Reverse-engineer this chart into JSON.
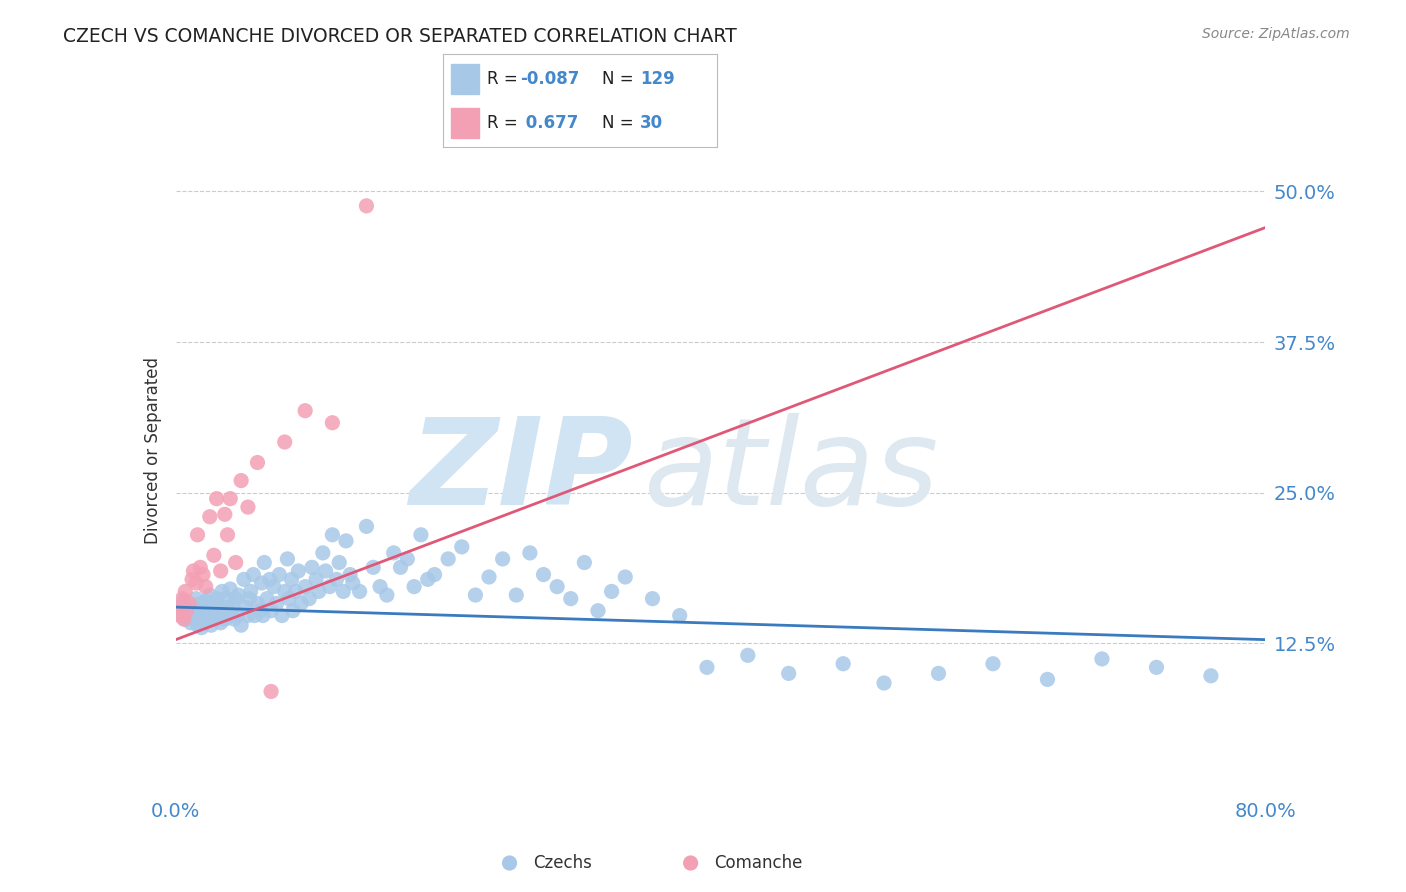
{
  "title": "CZECH VS COMANCHE DIVORCED OR SEPARATED CORRELATION CHART",
  "source_text": "Source: ZipAtlas.com",
  "ylabel": "Divorced or Separated",
  "xlim": [
    0.0,
    0.8
  ],
  "ylim": [
    0.0,
    0.57
  ],
  "xtick_labels": [
    "0.0%",
    "80.0%"
  ],
  "xtick_values": [
    0.0,
    0.8
  ],
  "ytick_labels": [
    "12.5%",
    "25.0%",
    "37.5%",
    "50.0%"
  ],
  "ytick_values": [
    0.125,
    0.25,
    0.375,
    0.5
  ],
  "legend_r_czech": "-0.087",
  "legend_n_czech": "129",
  "legend_r_comanche": "0.677",
  "legend_n_comanche": "30",
  "czech_color": "#a8c8e8",
  "comanche_color": "#f4a0b4",
  "czech_line_color": "#3a7abf",
  "comanche_line_color": "#e05878",
  "watermark_text1": "ZIP",
  "watermark_text2": "atlas",
  "watermark_color": "#d0e4f4",
  "grid_color": "#cccccc",
  "title_color": "#222222",
  "tick_label_color": "#4488cc",
  "legend_text_color": "#222222",
  "legend_value_color": "#4488cc",
  "czech_line_start_y": 0.155,
  "czech_line_end_y": 0.128,
  "comanche_line_start_y": 0.128,
  "comanche_line_end_y": 0.47,
  "czech_scatter_x": [
    0.003,
    0.004,
    0.005,
    0.006,
    0.007,
    0.008,
    0.009,
    0.01,
    0.011,
    0.012,
    0.013,
    0.014,
    0.015,
    0.015,
    0.016,
    0.017,
    0.018,
    0.018,
    0.019,
    0.02,
    0.021,
    0.022,
    0.023,
    0.024,
    0.025,
    0.025,
    0.026,
    0.027,
    0.028,
    0.029,
    0.03,
    0.031,
    0.032,
    0.033,
    0.034,
    0.035,
    0.036,
    0.037,
    0.038,
    0.039,
    0.04,
    0.041,
    0.042,
    0.043,
    0.044,
    0.045,
    0.046,
    0.048,
    0.05,
    0.051,
    0.053,
    0.054,
    0.055,
    0.057,
    0.058,
    0.06,
    0.062,
    0.063,
    0.064,
    0.065,
    0.067,
    0.069,
    0.07,
    0.072,
    0.074,
    0.076,
    0.078,
    0.08,
    0.082,
    0.083,
    0.085,
    0.086,
    0.088,
    0.09,
    0.092,
    0.095,
    0.098,
    0.1,
    0.103,
    0.105,
    0.108,
    0.11,
    0.113,
    0.115,
    0.118,
    0.12,
    0.123,
    0.125,
    0.128,
    0.13,
    0.135,
    0.14,
    0.145,
    0.15,
    0.155,
    0.16,
    0.165,
    0.17,
    0.175,
    0.18,
    0.185,
    0.19,
    0.2,
    0.21,
    0.22,
    0.23,
    0.24,
    0.25,
    0.26,
    0.27,
    0.28,
    0.29,
    0.3,
    0.31,
    0.32,
    0.33,
    0.35,
    0.37,
    0.39,
    0.42,
    0.45,
    0.49,
    0.52,
    0.56,
    0.6,
    0.64,
    0.68,
    0.72,
    0.76
  ],
  "czech_scatter_y": [
    0.155,
    0.148,
    0.152,
    0.16,
    0.145,
    0.148,
    0.15,
    0.155,
    0.142,
    0.15,
    0.145,
    0.155,
    0.148,
    0.162,
    0.14,
    0.152,
    0.145,
    0.158,
    0.138,
    0.155,
    0.148,
    0.16,
    0.145,
    0.155,
    0.148,
    0.165,
    0.14,
    0.152,
    0.158,
    0.145,
    0.162,
    0.148,
    0.155,
    0.142,
    0.168,
    0.15,
    0.145,
    0.162,
    0.155,
    0.148,
    0.17,
    0.148,
    0.155,
    0.145,
    0.162,
    0.148,
    0.165,
    0.14,
    0.178,
    0.155,
    0.148,
    0.162,
    0.168,
    0.182,
    0.148,
    0.158,
    0.152,
    0.175,
    0.148,
    0.192,
    0.162,
    0.178,
    0.152,
    0.172,
    0.158,
    0.182,
    0.148,
    0.168,
    0.195,
    0.162,
    0.178,
    0.152,
    0.168,
    0.185,
    0.158,
    0.172,
    0.162,
    0.188,
    0.178,
    0.168,
    0.2,
    0.185,
    0.172,
    0.215,
    0.178,
    0.192,
    0.168,
    0.21,
    0.182,
    0.175,
    0.168,
    0.222,
    0.188,
    0.172,
    0.165,
    0.2,
    0.188,
    0.195,
    0.172,
    0.215,
    0.178,
    0.182,
    0.195,
    0.205,
    0.165,
    0.18,
    0.195,
    0.165,
    0.2,
    0.182,
    0.172,
    0.162,
    0.192,
    0.152,
    0.168,
    0.18,
    0.162,
    0.148,
    0.105,
    0.115,
    0.1,
    0.108,
    0.092,
    0.1,
    0.108,
    0.095,
    0.112,
    0.105,
    0.098
  ],
  "comanche_scatter_x": [
    0.003,
    0.004,
    0.005,
    0.006,
    0.007,
    0.008,
    0.01,
    0.012,
    0.013,
    0.015,
    0.016,
    0.018,
    0.02,
    0.022,
    0.025,
    0.028,
    0.03,
    0.033,
    0.036,
    0.038,
    0.04,
    0.044,
    0.048,
    0.053,
    0.06,
    0.07,
    0.08,
    0.095,
    0.115,
    0.14
  ],
  "comanche_scatter_y": [
    0.148,
    0.155,
    0.162,
    0.145,
    0.168,
    0.152,
    0.158,
    0.178,
    0.185,
    0.175,
    0.215,
    0.188,
    0.182,
    0.172,
    0.23,
    0.198,
    0.245,
    0.185,
    0.232,
    0.215,
    0.245,
    0.192,
    0.26,
    0.238,
    0.275,
    0.085,
    0.292,
    0.318,
    0.308,
    0.488
  ]
}
